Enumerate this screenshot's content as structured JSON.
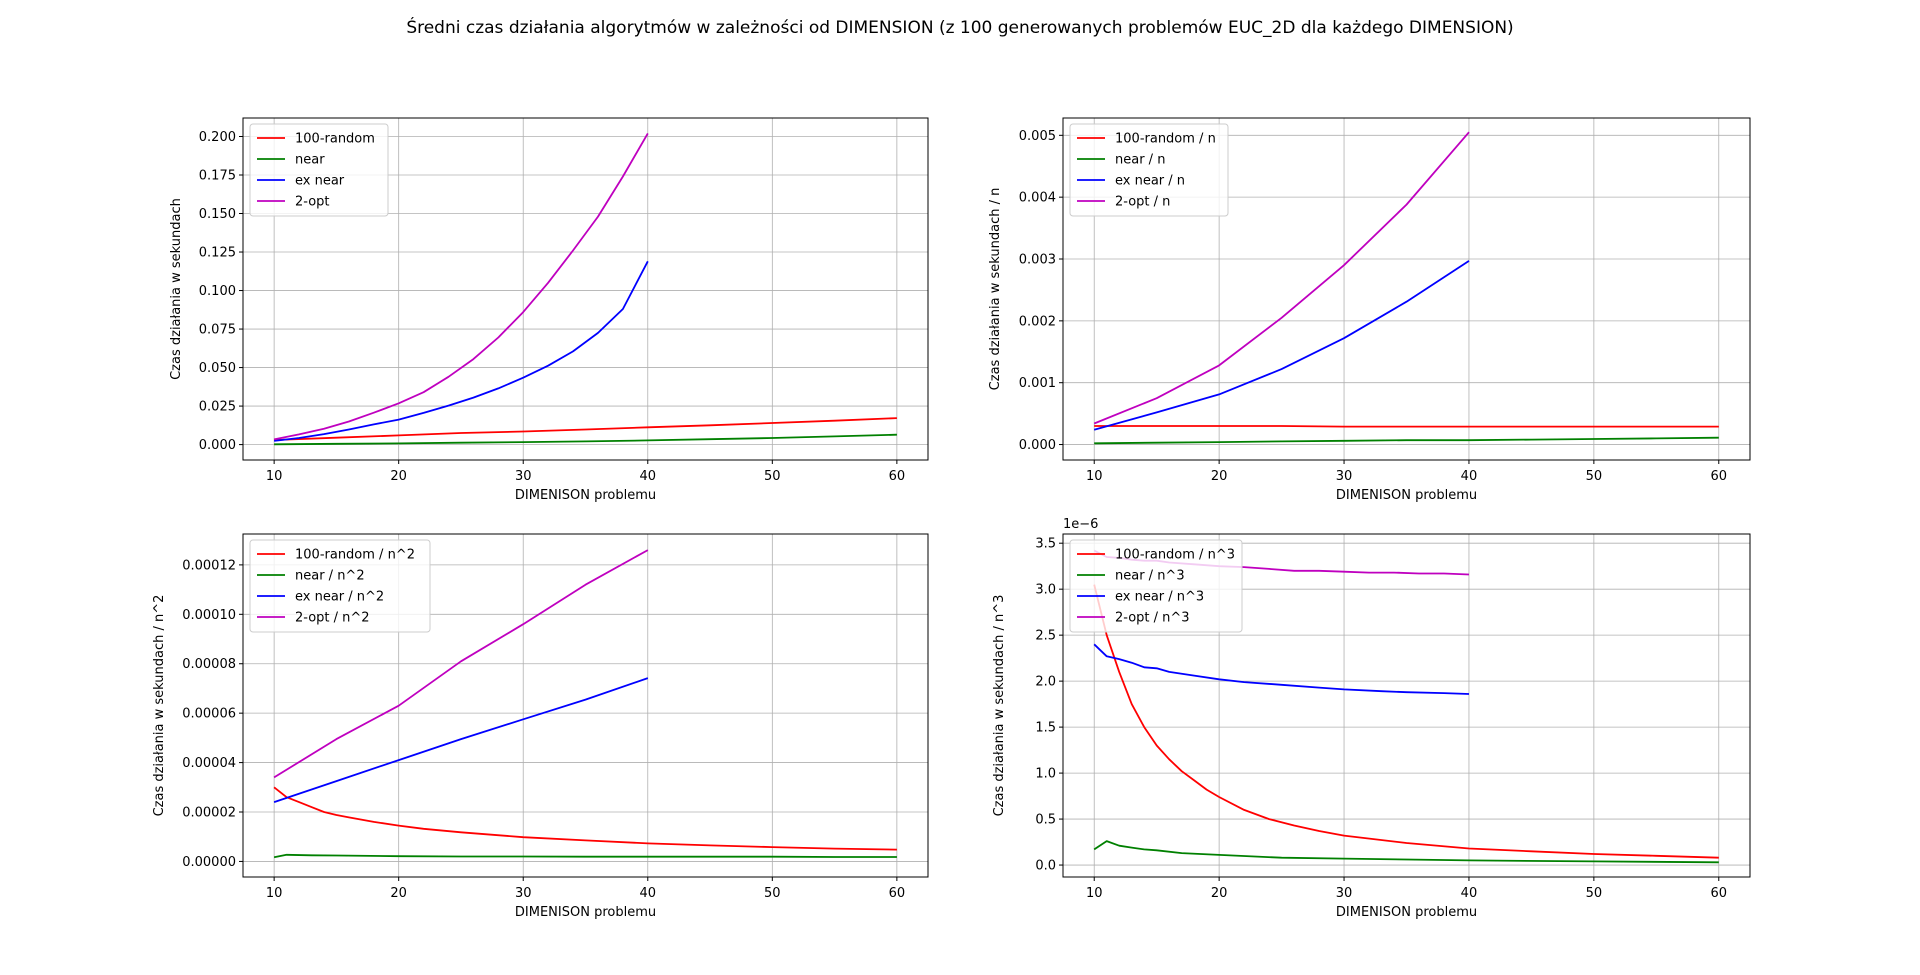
{
  "suptitle": "Średni czas działania algorytmów w zależności od DIMENSION (z 100 generowanych problemów EUC_2D dla każdego DIMENSION)",
  "colors": {
    "100-random": "#ff0000",
    "near": "#008000",
    "ex near": "#0000ff",
    "2-opt": "#bf00bf"
  },
  "chart_data": [
    {
      "type": "line",
      "xlabel": "DIMENISON problemu",
      "ylabel": "Czas działania w sekundach",
      "xlim": [
        7.5,
        62.5
      ],
      "ylim": [
        -0.01,
        0.212
      ],
      "xticks": [
        10,
        20,
        30,
        40,
        50,
        60
      ],
      "xtick_labels": [
        "10",
        "20",
        "30",
        "40",
        "50",
        "60"
      ],
      "yticks": [
        0.0,
        0.025,
        0.05,
        0.075,
        0.1,
        0.125,
        0.15,
        0.175,
        0.2
      ],
      "ytick_labels": [
        "0.000",
        "0.025",
        "0.050",
        "0.075",
        "0.100",
        "0.125",
        "0.150",
        "0.175",
        "0.200"
      ],
      "grid": true,
      "legend": "upper left",
      "series": [
        {
          "name": "100-random",
          "color": "#ff0000",
          "x": [
            10,
            15,
            20,
            25,
            30,
            35,
            40,
            45,
            50,
            55,
            60
          ],
          "y": [
            0.003,
            0.0045,
            0.006,
            0.0075,
            0.0085,
            0.0098,
            0.0112,
            0.0125,
            0.014,
            0.0155,
            0.0172
          ]
        },
        {
          "name": "near",
          "color": "#008000",
          "x": [
            10,
            15,
            20,
            25,
            30,
            35,
            40,
            45,
            50,
            55,
            60
          ],
          "y": [
            0.0002,
            0.0005,
            0.0008,
            0.0012,
            0.0016,
            0.0021,
            0.0027,
            0.0035,
            0.0043,
            0.0053,
            0.0064
          ]
        },
        {
          "name": "ex near",
          "color": "#0000ff",
          "x": [
            10,
            12,
            14,
            16,
            18,
            20,
            22,
            24,
            26,
            28,
            30,
            32,
            34,
            36,
            38,
            40
          ],
          "y": [
            0.0024,
            0.0043,
            0.0068,
            0.0098,
            0.0131,
            0.0162,
            0.0206,
            0.0253,
            0.0305,
            0.0365,
            0.0434,
            0.0512,
            0.0605,
            0.0725,
            0.088,
            0.119
          ]
        },
        {
          "name": "2-opt",
          "color": "#bf00bf",
          "x": [
            10,
            12,
            14,
            16,
            18,
            20,
            22,
            24,
            26,
            28,
            30,
            32,
            34,
            36,
            38,
            40
          ],
          "y": [
            0.0034,
            0.0066,
            0.0103,
            0.015,
            0.0207,
            0.0268,
            0.034,
            0.044,
            0.0555,
            0.0695,
            0.086,
            0.105,
            0.126,
            0.148,
            0.174,
            0.202
          ]
        }
      ]
    },
    {
      "type": "line",
      "xlabel": "DIMENISON problemu",
      "ylabel": "Czas działania w sekundach / n",
      "xlim": [
        7.5,
        62.5
      ],
      "ylim": [
        -0.00025,
        0.00528
      ],
      "xticks": [
        10,
        20,
        30,
        40,
        50,
        60
      ],
      "xtick_labels": [
        "10",
        "20",
        "30",
        "40",
        "50",
        "60"
      ],
      "yticks": [
        0.0,
        0.001,
        0.002,
        0.003,
        0.004,
        0.005
      ],
      "ytick_labels": [
        "0.000",
        "0.001",
        "0.002",
        "0.003",
        "0.004",
        "0.005"
      ],
      "grid": true,
      "legend": "upper left",
      "series": [
        {
          "name": "100-random / n",
          "color": "#ff0000",
          "x": [
            10,
            15,
            20,
            25,
            30,
            35,
            40,
            45,
            50,
            55,
            60
          ],
          "y": [
            0.0003,
            0.0003,
            0.0003,
            0.0003,
            0.00029,
            0.00029,
            0.00029,
            0.00029,
            0.00029,
            0.00029,
            0.00029
          ]
        },
        {
          "name": "near / n",
          "color": "#008000",
          "x": [
            10,
            15,
            20,
            25,
            30,
            35,
            40,
            45,
            50,
            55,
            60
          ],
          "y": [
            2e-05,
            3e-05,
            4e-05,
            5e-05,
            6e-05,
            7e-05,
            7e-05,
            8e-05,
            9e-05,
            0.0001,
            0.00011
          ]
        },
        {
          "name": "ex near / n",
          "color": "#0000ff",
          "x": [
            10,
            15,
            20,
            25,
            30,
            35,
            40
          ],
          "y": [
            0.00024,
            0.00052,
            0.00081,
            0.00122,
            0.00172,
            0.00231,
            0.00297
          ]
        },
        {
          "name": "2-opt / n",
          "color": "#bf00bf",
          "x": [
            10,
            15,
            20,
            25,
            30,
            35,
            40
          ],
          "y": [
            0.00034,
            0.00075,
            0.00128,
            0.00205,
            0.0029,
            0.00388,
            0.00505
          ]
        }
      ]
    },
    {
      "type": "line",
      "xlabel": "DIMENISON problemu",
      "ylabel": "Czas działania w sekundach / n^2",
      "xlim": [
        7.5,
        62.5
      ],
      "ylim": [
        -6.3e-06,
        0.0001325
      ],
      "xticks": [
        10,
        20,
        30,
        40,
        50,
        60
      ],
      "xtick_labels": [
        "10",
        "20",
        "30",
        "40",
        "50",
        "60"
      ],
      "yticks": [
        0.0,
        2e-05,
        4e-05,
        6e-05,
        8e-05,
        0.0001,
        0.00012
      ],
      "ytick_labels": [
        "0.00000",
        "0.00002",
        "0.00004",
        "0.00006",
        "0.00008",
        "0.00010",
        "0.00012"
      ],
      "grid": true,
      "legend": "upper left",
      "series": [
        {
          "name": "100-random / n^2",
          "color": "#ff0000",
          "x": [
            10,
            11,
            12,
            13,
            14,
            15,
            16,
            18,
            20,
            22,
            25,
            30,
            35,
            40,
            45,
            50,
            55,
            60
          ],
          "y": [
            3e-05,
            2.6e-05,
            2.4e-05,
            2.2e-05,
            2e-05,
            1.88e-05,
            1.78e-05,
            1.6e-05,
            1.45e-05,
            1.32e-05,
            1.18e-05,
            9.8e-06,
            8.5e-06,
            7.3e-06,
            6.5e-06,
            5.8e-06,
            5.2e-06,
            4.8e-06
          ]
        },
        {
          "name": "near / n^2",
          "color": "#008000",
          "x": [
            10,
            11,
            13,
            15,
            20,
            25,
            30,
            35,
            40,
            45,
            50,
            55,
            60
          ],
          "y": [
            1.7e-06,
            2.7e-06,
            2.5e-06,
            2.4e-06,
            2.1e-06,
            2e-06,
            2e-06,
            1.9e-06,
            1.9e-06,
            1.9e-06,
            1.9e-06,
            1.8e-06,
            1.8e-06
          ]
        },
        {
          "name": "ex near / n^2",
          "color": "#0000ff",
          "x": [
            10,
            15,
            20,
            25,
            30,
            35,
            40
          ],
          "y": [
            2.4e-05,
            3.25e-05,
            4.1e-05,
            4.95e-05,
            5.75e-05,
            6.55e-05,
            7.42e-05
          ]
        },
        {
          "name": "2-opt / n^2",
          "color": "#bf00bf",
          "x": [
            10,
            15,
            20,
            25,
            30,
            35,
            40
          ],
          "y": [
            3.4e-05,
            4.95e-05,
            6.3e-05,
            8.1e-05,
            9.6e-05,
            0.000112,
            0.000126
          ]
        }
      ]
    },
    {
      "type": "line",
      "xlabel": "DIMENISON problemu",
      "ylabel": "Czas działania w sekundach / n^3",
      "offset_label": "1e−6",
      "xlim": [
        7.5,
        62.5
      ],
      "ylim": [
        -0.13,
        3.6
      ],
      "xticks": [
        10,
        20,
        30,
        40,
        50,
        60
      ],
      "xtick_labels": [
        "10",
        "20",
        "30",
        "40",
        "50",
        "60"
      ],
      "yticks": [
        0.0,
        0.5,
        1.0,
        1.5,
        2.0,
        2.5,
        3.0,
        3.5
      ],
      "ytick_labels": [
        "0.0",
        "0.5",
        "1.0",
        "1.5",
        "2.0",
        "2.5",
        "3.0",
        "3.5"
      ],
      "grid": true,
      "legend": "upper left",
      "series": [
        {
          "name": "100-random / n^3",
          "color": "#ff0000",
          "x": [
            10,
            11,
            12,
            13,
            14,
            15,
            16,
            17,
            18,
            19,
            20,
            22,
            24,
            26,
            28,
            30,
            35,
            40,
            45,
            50,
            55,
            60
          ],
          "y": [
            3.05,
            2.5,
            2.1,
            1.75,
            1.5,
            1.3,
            1.15,
            1.02,
            0.92,
            0.82,
            0.74,
            0.6,
            0.5,
            0.43,
            0.37,
            0.32,
            0.24,
            0.18,
            0.15,
            0.12,
            0.1,
            0.08
          ]
        },
        {
          "name": "near / n^3",
          "color": "#008000",
          "x": [
            10,
            11,
            12,
            13,
            14,
            15,
            17,
            20,
            25,
            30,
            35,
            40,
            50,
            60
          ],
          "y": [
            0.17,
            0.26,
            0.21,
            0.19,
            0.17,
            0.16,
            0.13,
            0.11,
            0.08,
            0.07,
            0.06,
            0.05,
            0.04,
            0.03
          ]
        },
        {
          "name": "ex near / n^3",
          "color": "#0000ff",
          "x": [
            10,
            11,
            12,
            13,
            14,
            15,
            16,
            18,
            20,
            22,
            25,
            28,
            30,
            33,
            35,
            38,
            40
          ],
          "y": [
            2.4,
            2.27,
            2.24,
            2.2,
            2.15,
            2.14,
            2.1,
            2.06,
            2.02,
            1.99,
            1.96,
            1.93,
            1.91,
            1.89,
            1.88,
            1.87,
            1.86
          ]
        },
        {
          "name": "2-opt / n^3",
          "color": "#bf00bf",
          "x": [
            10,
            11,
            12,
            13,
            14,
            15,
            16,
            18,
            20,
            22,
            24,
            26,
            28,
            30,
            32,
            34,
            36,
            38,
            40
          ],
          "y": [
            3.42,
            3.35,
            3.34,
            3.32,
            3.31,
            3.31,
            3.29,
            3.27,
            3.25,
            3.24,
            3.22,
            3.2,
            3.2,
            3.19,
            3.18,
            3.18,
            3.17,
            3.17,
            3.16
          ]
        }
      ]
    }
  ]
}
